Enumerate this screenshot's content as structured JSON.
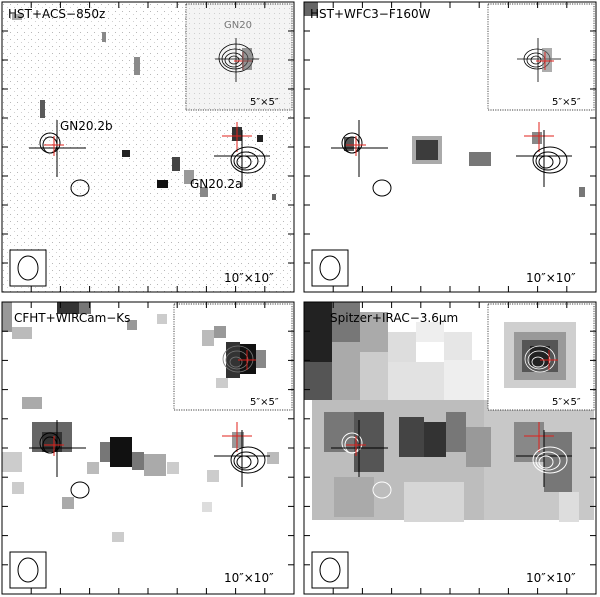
{
  "panels": [
    {
      "id": "hst-acs",
      "label": "HST+ACS−850z",
      "scale_label": "10″×10″",
      "has_inset": true,
      "inset_scale_label": "5″×5″",
      "inset_label": "GN20",
      "source_labels": [
        "GN20.2b",
        "GN20.2a"
      ]
    },
    {
      "id": "hst-wfc3",
      "label": "HST+WFC3−F160W",
      "scale_label": "10″×10″",
      "has_inset": true,
      "inset_scale_label": "5″×5″"
    },
    {
      "id": "cfht-wircam",
      "label": "CFHT+WIRCam−Ks",
      "scale_label": "10″×10″",
      "has_inset": true,
      "inset_scale_label": "5″×5″"
    },
    {
      "id": "spitzer-irac",
      "label": "Spitzer+IRAC−3.6μm",
      "scale_label": "10″×10″",
      "has_inset": true,
      "inset_scale_label": "5″×5″"
    }
  ],
  "colors": {
    "frame": "#000000",
    "marker_red": "#e0201b",
    "marker_black": "#000000"
  }
}
